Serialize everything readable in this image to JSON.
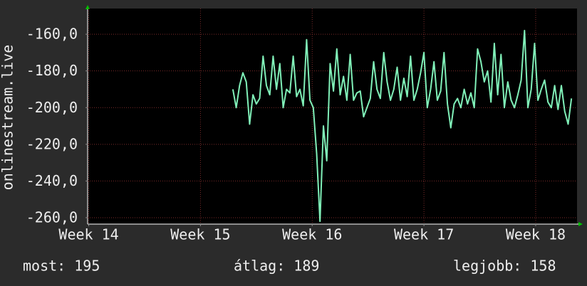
{
  "chart_data": {
    "type": "line",
    "y_label": "onlinestream.live",
    "x": [
      15.29,
      15.32,
      15.35,
      15.38,
      15.41,
      15.44,
      15.47,
      15.5,
      15.53,
      15.56,
      15.59,
      15.62,
      15.65,
      15.68,
      15.71,
      15.74,
      15.77,
      15.8,
      15.83,
      15.86,
      15.89,
      15.92,
      15.95,
      15.98,
      16.01,
      16.04,
      16.07,
      16.1,
      16.13,
      16.16,
      16.19,
      16.22,
      16.25,
      16.28,
      16.31,
      16.34,
      16.37,
      16.4,
      16.43,
      16.46,
      16.49,
      16.52,
      16.55,
      16.58,
      16.61,
      16.64,
      16.67,
      16.7,
      16.73,
      16.76,
      16.79,
      16.82,
      16.85,
      16.88,
      16.91,
      16.94,
      16.97,
      17.0,
      17.03,
      17.06,
      17.09,
      17.12,
      17.15,
      17.18,
      17.21,
      17.24,
      17.27,
      17.3,
      17.33,
      17.36,
      17.39,
      17.42,
      17.45,
      17.48,
      17.51,
      17.54,
      17.57,
      17.6,
      17.63,
      17.66,
      17.69,
      17.72,
      17.75,
      17.78,
      17.81,
      17.84,
      17.87,
      17.9,
      17.93,
      17.96,
      17.99,
      18.02,
      18.05,
      18.08,
      18.11,
      18.14,
      18.17,
      18.2,
      18.23,
      18.26,
      18.29,
      18.32
    ],
    "series": [
      {
        "color": "#80f0b8",
        "values": [
          -190,
          -200,
          -188,
          -181,
          -186,
          -209,
          -193,
          -198,
          -195,
          -172,
          -188,
          -193,
          -172,
          -190,
          -176,
          -200,
          -190,
          -192,
          -172,
          -194,
          -190,
          -199,
          -163,
          -196,
          -200,
          -225,
          -262,
          -210,
          -229,
          -176,
          -191,
          -168,
          -193,
          -183,
          -196,
          -171,
          -196,
          -192,
          -191,
          -205,
          -200,
          -195,
          -175,
          -190,
          -195,
          -170,
          -186,
          -196,
          -190,
          -178,
          -196,
          -184,
          -194,
          -172,
          -196,
          -190,
          -181,
          -170,
          -200,
          -190,
          -175,
          -196,
          -191,
          -170,
          -198,
          -211,
          -198,
          -195,
          -200,
          -190,
          -198,
          -192,
          -200,
          -168,
          -175,
          -186,
          -180,
          -197,
          -165,
          -193,
          -171,
          -200,
          -186,
          -196,
          -200,
          -193,
          -185,
          -158,
          -200,
          -190,
          -165,
          -196,
          -190,
          -185,
          -197,
          -200,
          -188,
          -201,
          -188,
          -202,
          -209,
          -195
        ]
      }
    ],
    "xlim": [
      13.99,
      18.37
    ],
    "xticks": [
      {
        "value": 14,
        "label": "Week 14"
      },
      {
        "value": 15,
        "label": "Week 15"
      },
      {
        "value": 16,
        "label": "Week 16"
      },
      {
        "value": 17,
        "label": "Week 17"
      },
      {
        "value": 18,
        "label": "Week 18"
      }
    ],
    "ylim": [
      -263.5,
      -146
    ],
    "yticks": [
      {
        "value": -160,
        "label": "-160,0"
      },
      {
        "value": -180,
        "label": "-180,0"
      },
      {
        "value": -200,
        "label": "-200,0"
      },
      {
        "value": -220,
        "label": "-220,0"
      },
      {
        "value": -240,
        "label": "-240,0"
      },
      {
        "value": -260,
        "label": "-260,0"
      }
    ],
    "grid": true,
    "stats": [
      "most: 195",
      "átlag: 189",
      "legjobb: 158"
    ]
  }
}
